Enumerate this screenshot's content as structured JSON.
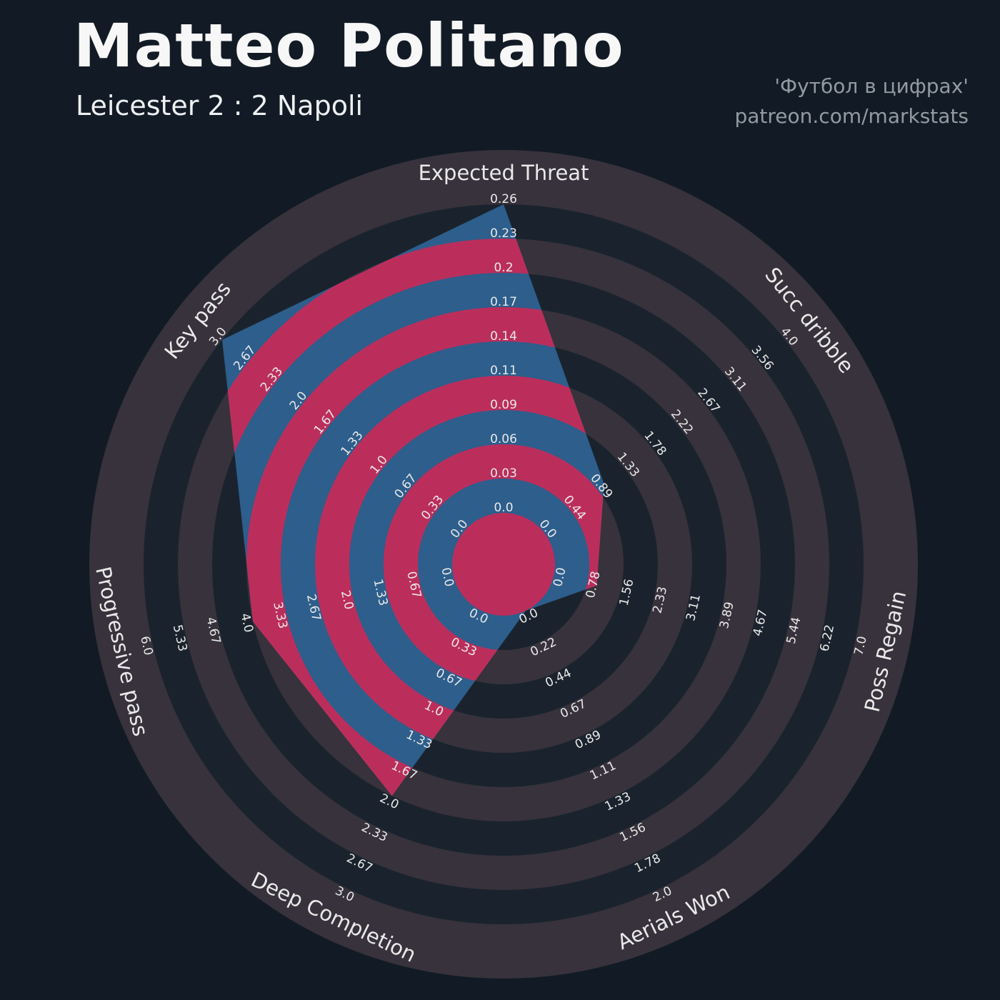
{
  "header": {
    "title": "Matteo Politano",
    "subtitle": "Leicester 2 : 2 Napoli",
    "credit_line1": "'Футбол в цифрах'",
    "credit_line2": "patreon.com/markstats"
  },
  "chart_data": {
    "type": "radar",
    "title": "Matteo Politano",
    "subtitle": "Leicester 2 : 2 Napoli",
    "legend_position": "none",
    "grid": "concentric-rings",
    "params": [
      {
        "label": "Expected Threat",
        "min": 0,
        "max": 0.26,
        "value": 0.26,
        "ticks": [
          "0.0",
          "0.03",
          "0.06",
          "0.09",
          "0.11",
          "0.14",
          "0.17",
          "0.2",
          "0.23",
          "0.26"
        ]
      },
      {
        "label": "Succ dribble",
        "min": 0,
        "max": 4.0,
        "value": 1.0,
        "ticks": [
          "0.0",
          "0.44",
          "0.89",
          "1.33",
          "1.78",
          "2.22",
          "2.67",
          "3.11",
          "3.56",
          "4.0"
        ]
      },
      {
        "label": "Poss Regain",
        "min": 0,
        "max": 7.0,
        "value": 1.0,
        "ticks": [
          "0.0",
          "0.78",
          "1.56",
          "2.33",
          "3.11",
          "3.89",
          "4.67",
          "5.44",
          "6.22",
          "7.0"
        ]
      },
      {
        "label": "Aerials Won",
        "min": 0,
        "max": 2.0,
        "value": 0.0,
        "ticks": [
          "0.0",
          "0.22",
          "0.44",
          "0.67",
          "0.89",
          "1.11",
          "1.33",
          "1.56",
          "1.78",
          "2.0"
        ]
      },
      {
        "label": "Deep Completion",
        "min": 0,
        "max": 3.0,
        "value": 2.0,
        "ticks": [
          "0.0",
          "0.33",
          "0.67",
          "1.0",
          "1.33",
          "1.67",
          "2.0",
          "2.33",
          "2.67",
          "3.0"
        ]
      },
      {
        "label": "Progressive pass",
        "min": 0,
        "max": 6.0,
        "value": 4.0,
        "ticks": [
          "0.0",
          "0.67",
          "1.33",
          "2.0",
          "2.67",
          "3.33",
          "4.0",
          "4.67",
          "5.33",
          "6.0"
        ]
      },
      {
        "label": "Key pass",
        "min": 0,
        "max": 3.0,
        "value": 3.0,
        "ticks": [
          "0.0",
          "0.33",
          "0.67",
          "1.0",
          "1.33",
          "1.67",
          "2.0",
          "2.33",
          "2.67",
          "3.0"
        ]
      }
    ],
    "colors": {
      "background": "#121b25",
      "ring_light": "#37323b",
      "ring_dark": "#1a232d",
      "radar_fill": "#2d5e8c",
      "radar_rings": "#bb2e5c",
      "text": "#e9e9e9",
      "credit_text": "#939aa1"
    }
  }
}
